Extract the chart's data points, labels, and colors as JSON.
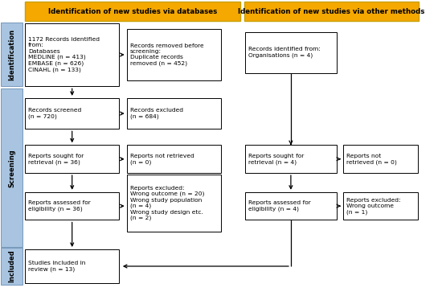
{
  "title_db": "Identification of new studies via databases",
  "title_other": "Identification of new studies via other methods",
  "title_bg": "#F5A800",
  "title_border": "#C8A000",
  "box_bg": "#FFFFFF",
  "box_border": "#000000",
  "sidebar_bg": "#A8C4E0",
  "sidebar_border": "#7799BB",
  "arrow_color": "#000000",
  "sidebar_labels": [
    "Identification",
    "Screening",
    "Included"
  ],
  "texts": {
    "id_db": "1172 Records identified\nfrom:\nDatabases\nMEDLINE (n = 413)\nEMBASE (n = 626)\nCINAHL (n = 133)",
    "id_rem": "Records removed before\nscreening:\nDuplicate records\nremoved (n = 452)",
    "id_other": "Records identified from:\nOrganisations (n = 4)",
    "screened": "Records screened\n(n = 720)",
    "excluded": "Records excluded\n(n = 684)",
    "retr_db": "Reports sought for\nretrieval (n = 36)",
    "not_retr_db": "Reports not retrieved\n(n = 0)",
    "retr_oth": "Reports sought for\nretrieval (n = 4)",
    "not_retr_oth": "Reports not\nretrieved (n = 0)",
    "assess_db": "Reports assessed for\neligibility (n = 36)",
    "excl_db": "Reports excluded:\nWrong outcome (n = 20)\nWrong study population\n(n = 4)\nWrong study design etc.\n(n = 2)",
    "assess_oth": "Reports assessed for\neligibility (n = 4)",
    "excl_oth": "Reports excluded:\nWrong outcome\n(n = 1)",
    "included": "Studies included in\nreview (n = 13)"
  },
  "fontsize": 5.4,
  "title_fontsize": 6.2,
  "sidebar_fontsize": 6.0
}
